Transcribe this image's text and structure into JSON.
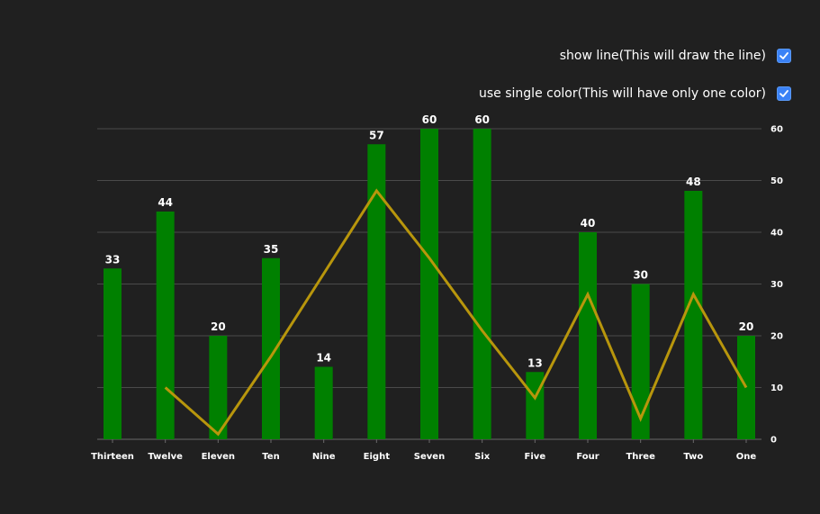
{
  "options": {
    "show_line_label": "show line(This will draw the line)",
    "show_line_checked": true,
    "single_color_label": "use single color(This will have only one color)",
    "single_color_checked": true
  },
  "colors": {
    "background": "#202020",
    "bar": "#008000",
    "line": "#b8960c",
    "grid": "#4a4a4a",
    "checkbox": "#3b82f6"
  },
  "chart_data": {
    "type": "bar",
    "categories": [
      "Thirteen",
      "Twelve",
      "Eleven",
      "Ten",
      "Nine",
      "Eight",
      "Seven",
      "Six",
      "Five",
      "Four",
      "Three",
      "Two",
      "One"
    ],
    "values": [
      33,
      44,
      20,
      35,
      14,
      57,
      60,
      60,
      13,
      40,
      30,
      48,
      20
    ],
    "line_series": {
      "name": "line",
      "points": [
        {
          "category": "Twelve",
          "value": 10
        },
        {
          "category": "Eleven",
          "value": 1
        },
        {
          "category": "Ten",
          "value": 16
        },
        {
          "category": "Nine",
          "value": 32
        },
        {
          "category": "Eight",
          "value": 48
        },
        {
          "category": "Seven",
          "value": 35
        },
        {
          "category": "Six",
          "value": 21
        },
        {
          "category": "Five",
          "value": 8
        },
        {
          "category": "Four",
          "value": 28
        },
        {
          "category": "Three",
          "value": 4
        },
        {
          "category": "Two",
          "value": 28
        },
        {
          "category": "One",
          "value": 10
        }
      ]
    },
    "y_axis": {
      "position": "right",
      "ylim": [
        0,
        60
      ],
      "ticks": [
        "0",
        "10",
        "20",
        "30",
        "40",
        "50",
        "60"
      ]
    },
    "grid": true,
    "title": "",
    "xlabel": "",
    "ylabel": ""
  }
}
